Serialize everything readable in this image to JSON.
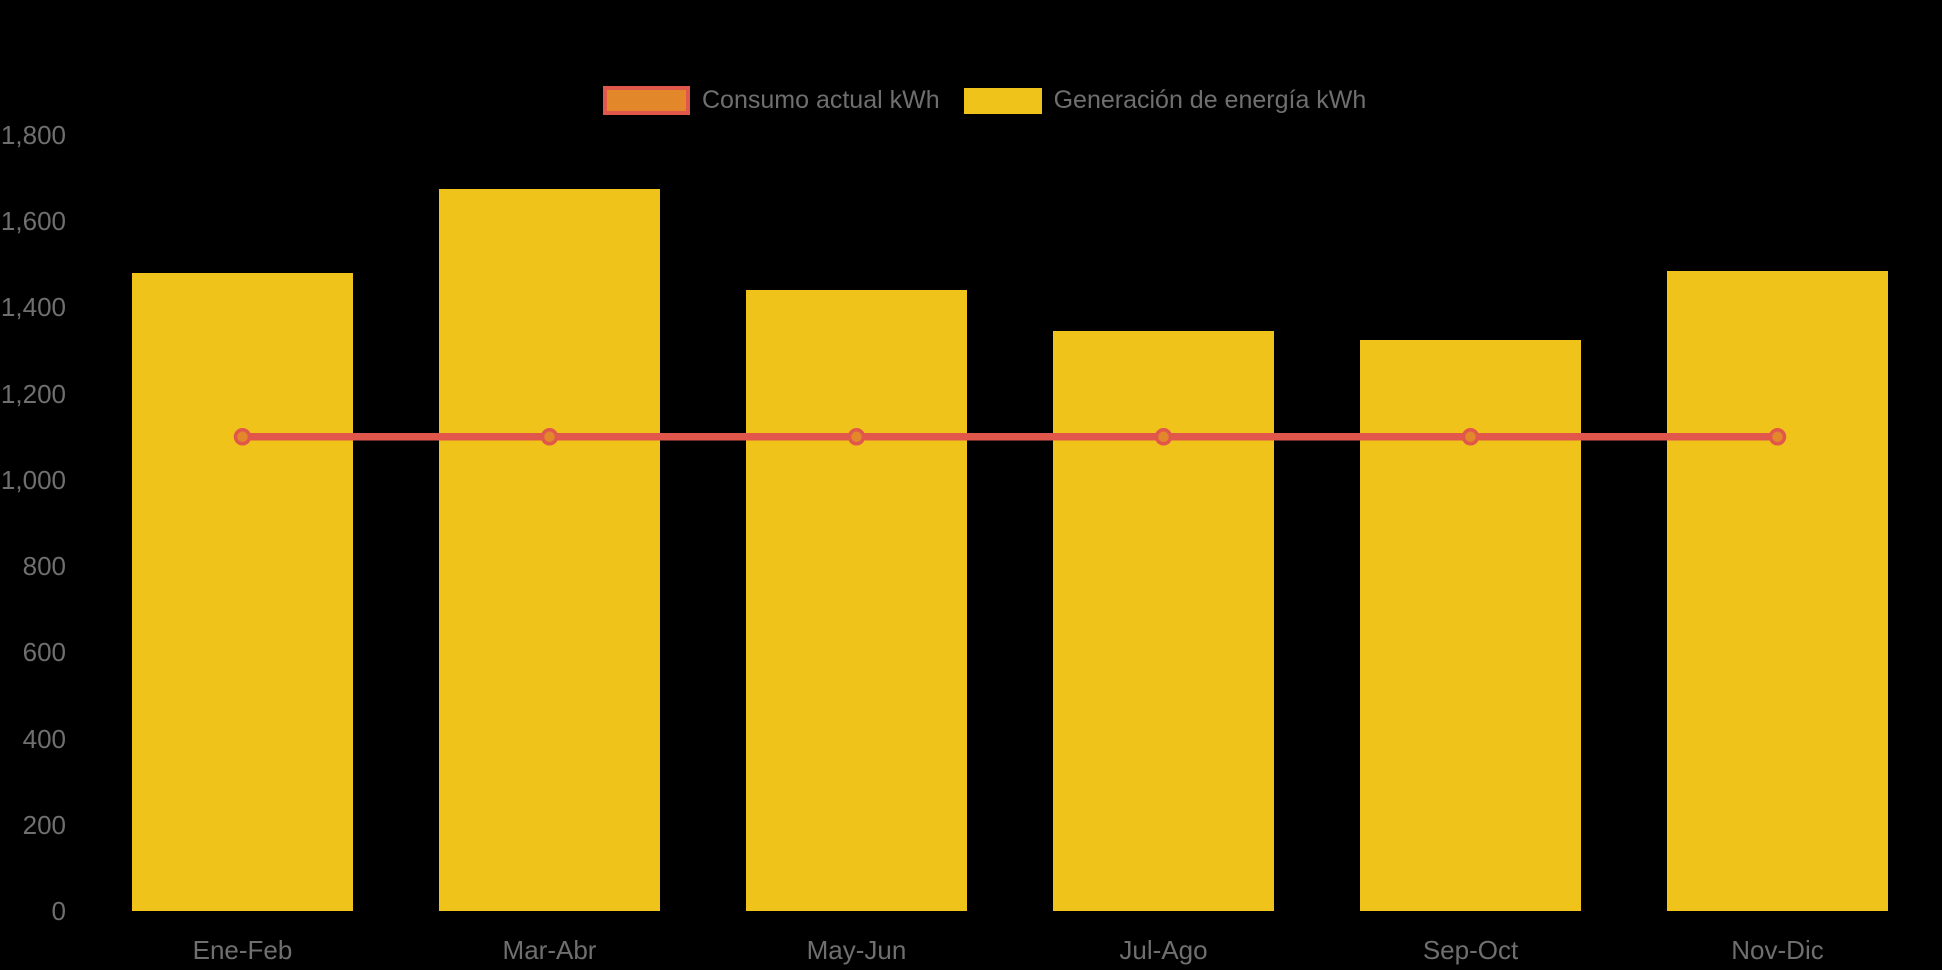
{
  "chart_data": {
    "type": "bar",
    "title": "",
    "categories": [
      "Ene-Feb",
      "Mar-Abr",
      "May-Jun",
      "Jul-Ago",
      "Sep-Oct",
      "Nov-Dic"
    ],
    "series": [
      {
        "name": "Consumo actual kWh",
        "type": "line",
        "color": "#E2574C",
        "marker_fill": "#E2872A",
        "values": [
          1100,
          1100,
          1100,
          1100,
          1100,
          1100
        ]
      },
      {
        "name": "Generación de energía kWh",
        "type": "bar",
        "color": "#EFC319",
        "values": [
          1480,
          1675,
          1440,
          1345,
          1325,
          1485
        ]
      }
    ],
    "ylabel": "",
    "xlabel": "",
    "ylim": [
      0,
      1800
    ],
    "ytick_step": 200,
    "ytick_labels": [
      "0",
      "200",
      "400",
      "600",
      "800",
      "1,000",
      "1,200",
      "1,400",
      "1,600",
      "1,800"
    ],
    "legend_position": "top-center",
    "grid": false,
    "background_color": "#000000",
    "text_color": "#6F6F6F"
  }
}
